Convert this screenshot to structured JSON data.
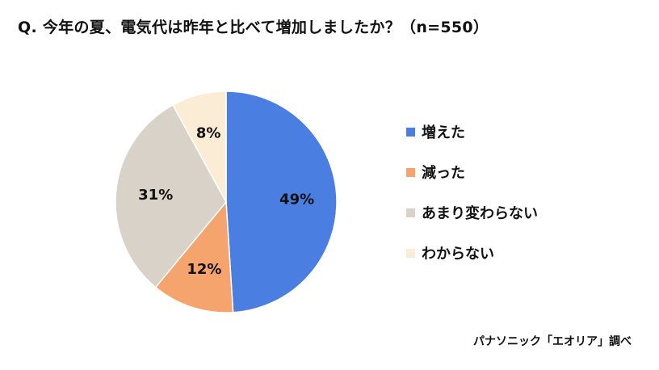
{
  "title": "Q. 今年の夏、電気代は昨年と比べて増加しましたか？（n=550）",
  "source": "パナソニック「エオリア」調べ",
  "chart_data": {
    "type": "pie",
    "categories": [
      "増えた",
      "減った",
      "あまり変わらない",
      "わからない"
    ],
    "values": [
      49,
      12,
      31,
      8
    ],
    "labels": [
      "49%",
      "12%",
      "31%",
      "8%"
    ],
    "colors": [
      "#4a7ee0",
      "#f5a46e",
      "#d8d2c8",
      "#fbecd6"
    ],
    "start": "12 o'clock",
    "direction": "clockwise",
    "legend_position": "right"
  }
}
